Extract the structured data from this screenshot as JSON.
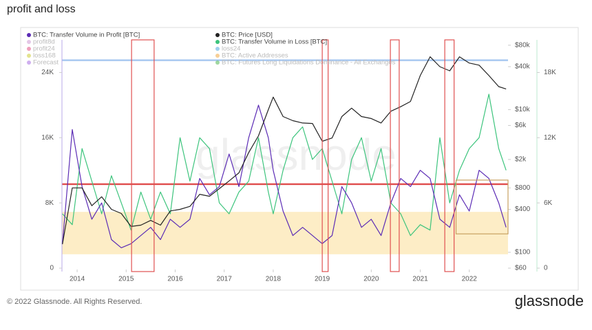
{
  "chart_data": {
    "type": "line",
    "title": "profit and loss",
    "watermark": "glassnode",
    "footer": "© 2022 Glassnode. All Rights Reserved.",
    "logo": "glassnode",
    "x": [
      2013.7,
      2013.9,
      2014.1,
      2014.3,
      2014.5,
      2014.7,
      2014.9,
      2015.1,
      2015.3,
      2015.5,
      2015.7,
      2015.9,
      2016.1,
      2016.3,
      2016.5,
      2016.7,
      2016.9,
      2017.1,
      2017.3,
      2017.5,
      2017.7,
      2017.9,
      2018.0,
      2018.2,
      2018.4,
      2018.6,
      2018.8,
      2019.0,
      2019.2,
      2019.4,
      2019.6,
      2019.8,
      2020.0,
      2020.2,
      2020.4,
      2020.6,
      2020.8,
      2021.0,
      2021.2,
      2021.4,
      2021.6,
      2021.8,
      2022.0,
      2022.2,
      2022.4,
      2022.6,
      2022.75
    ],
    "xlim": [
      2013.69,
      2022.79
    ],
    "xticks": [
      2014,
      2015,
      2016,
      2017,
      2018,
      2019,
      2020,
      2021,
      2022
    ],
    "ylim": [
      0,
      28000
    ],
    "yticks": [
      0,
      {
        "value": 8000,
        "label": "8K"
      },
      {
        "value": 16000,
        "label": "16K"
      },
      {
        "value": 24000,
        "label": "24K"
      }
    ],
    "y2lim": [
      60,
      95000
    ],
    "y2_log": true,
    "y2ticks": [
      {
        "value": 60,
        "label": "$60"
      },
      {
        "value": 100,
        "label": "$100"
      },
      {
        "value": 400,
        "label": "$400"
      },
      {
        "value": 800,
        "label": "$800"
      },
      {
        "value": 2000,
        "label": "$2k"
      },
      {
        "value": 6000,
        "label": "$6k"
      },
      {
        "value": 10000,
        "label": "$10k"
      },
      {
        "value": 40000,
        "label": "$40k"
      },
      {
        "value": 80000,
        "label": "$80k"
      }
    ],
    "y3lim": [
      0,
      21000
    ],
    "y3ticks": [
      0,
      {
        "value": 6000,
        "label": "6K"
      },
      {
        "value": 12000,
        "label": "12K"
      },
      {
        "value": 18000,
        "label": "18K"
      }
    ],
    "series": [
      {
        "name": "BTC: Transfer Volume in Profit [BTC]",
        "color": "#5b2bb5",
        "axis": "y",
        "values": [
          3000,
          17000,
          10000,
          6000,
          8000,
          3500,
          2500,
          3000,
          4000,
          5000,
          3500,
          6000,
          5000,
          6000,
          11000,
          9000,
          10000,
          14000,
          10000,
          16000,
          20000,
          16000,
          12000,
          7000,
          4000,
          5000,
          4000,
          3000,
          4000,
          10000,
          8000,
          5000,
          6000,
          4000,
          8000,
          11000,
          10000,
          12000,
          11000,
          6000,
          5000,
          9000,
          7000,
          12000,
          11000,
          8000,
          5000
        ]
      },
      {
        "name": "BTC: Price [USD]",
        "color": "#222222",
        "axis": "y2",
        "values": [
          130,
          800,
          800,
          450,
          600,
          400,
          350,
          230,
          240,
          280,
          240,
          380,
          400,
          440,
          650,
          610,
          780,
          1000,
          1300,
          2500,
          4300,
          10000,
          15000,
          8000,
          7000,
          6500,
          6400,
          3600,
          4000,
          8000,
          10500,
          8000,
          7500,
          6500,
          9500,
          11000,
          13000,
          30000,
          55000,
          40000,
          35000,
          55000,
          45000,
          42000,
          30000,
          21000,
          19500
        ]
      },
      {
        "name": "BTC: Transfer Volume in Loss [BTC]",
        "color": "#3cc47c",
        "axis": "y3",
        "values": [
          5000,
          4000,
          11000,
          8000,
          5000,
          8500,
          6000,
          3500,
          7000,
          4500,
          7000,
          5000,
          12000,
          8000,
          12000,
          11000,
          6000,
          5000,
          7000,
          8000,
          12000,
          7000,
          5000,
          9000,
          12000,
          13000,
          10000,
          11000,
          8000,
          5000,
          10000,
          12000,
          8000,
          11000,
          6000,
          5000,
          3000,
          4000,
          3500,
          12000,
          6000,
          9000,
          11000,
          12000,
          16000,
          11000,
          9000
        ]
      }
    ],
    "hidden_series": [
      {
        "name": "profit8d",
        "color": "#c98fd0"
      },
      {
        "name": "profit24",
        "color": "#e0407a"
      },
      {
        "name": "loss168",
        "color": "#c8c820"
      },
      {
        "name": "Forecast",
        "color": "#a060e0"
      },
      {
        "name": "loss24",
        "color": "#40a0e0"
      },
      {
        "name": "BTC: Active Addresses",
        "color": "#f0a030"
      },
      {
        "name": "BTC: Futures Long Liquidations Dominance - All Exchanges",
        "color": "#40b040"
      }
    ],
    "reference_lines": [
      {
        "value": 25500,
        "color": "#a8c8f0"
      },
      {
        "value": 10300,
        "color": "#e05050"
      }
    ],
    "band": {
      "from": 1700,
      "to": 6900,
      "color": "#fde9b8"
    },
    "highlights": [
      {
        "x": [
          2015.11,
          2015.57
        ],
        "color": "#e05050"
      },
      {
        "x": [
          2019.0,
          2019.12
        ],
        "color": "#e05050"
      },
      {
        "x": [
          2020.39,
          2020.57
        ],
        "color": "#e05050"
      },
      {
        "x": [
          2021.5,
          2021.69
        ],
        "color": "#e05050"
      }
    ],
    "box": {
      "x": [
        2021.73,
        2022.79
      ],
      "y": [
        4200,
        10800
      ],
      "color": "#c8a060"
    }
  }
}
